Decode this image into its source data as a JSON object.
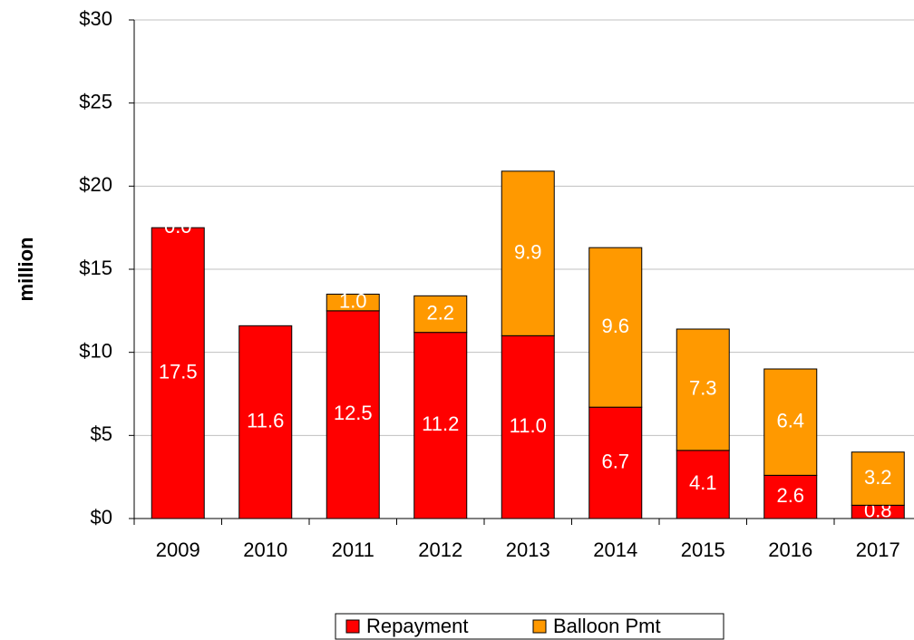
{
  "chart_data": {
    "type": "stacked_bar",
    "ylabel": "million",
    "categories": [
      "2009",
      "2010",
      "2011",
      "2012",
      "2013",
      "2014",
      "2015",
      "2016",
      "2017"
    ],
    "series": [
      {
        "name": "Repayment",
        "color": "#ff0000",
        "values": [
          17.5,
          11.6,
          12.5,
          11.2,
          11.0,
          6.7,
          4.1,
          2.6,
          0.8
        ],
        "value_labels": [
          "17.5",
          "11.6",
          "12.5",
          "11.2",
          "11.0",
          "6.7",
          "4.1",
          "2.6",
          "0.8"
        ]
      },
      {
        "name": "Balloon Pmt",
        "color": "#ff9900",
        "values": [
          0.0,
          null,
          1.0,
          2.2,
          9.9,
          9.6,
          7.3,
          6.4,
          3.2
        ],
        "value_labels": [
          "0.0",
          null,
          "1.0",
          "2.2",
          "9.9",
          "9.6",
          "7.3",
          "6.4",
          "3.2"
        ]
      }
    ],
    "ylim": [
      0,
      30
    ],
    "yticks": [
      {
        "value": 0,
        "label": "$0"
      },
      {
        "value": 5,
        "label": "$5"
      },
      {
        "value": 10,
        "label": "$10"
      },
      {
        "value": 15,
        "label": "$15"
      },
      {
        "value": 20,
        "label": "$20"
      },
      {
        "value": 25,
        "label": "$25"
      },
      {
        "value": 30,
        "label": "$30"
      }
    ],
    "grid": true,
    "legend": "bottom"
  }
}
